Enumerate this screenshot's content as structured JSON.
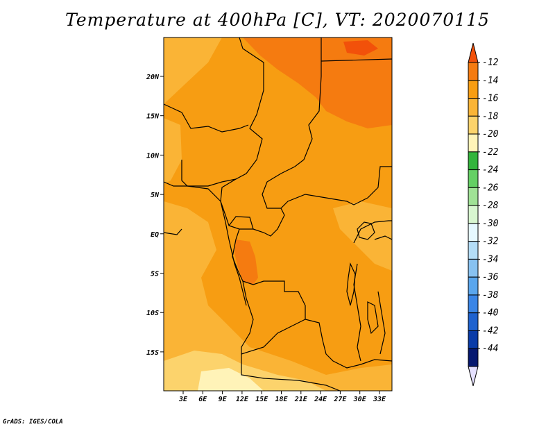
{
  "title": "Temperature at 400hPa [C], VT: 2020070115",
  "credit": "GrADS: IGES/COLA",
  "lat_labels": [
    "20N",
    "15N",
    "10N",
    "5N",
    "EQ",
    "5S",
    "10S",
    "15S"
  ],
  "lon_labels": [
    "3E",
    "6E",
    "9E",
    "12E",
    "15E",
    "18E",
    "21E",
    "24E",
    "27E",
    "30E",
    "33E"
  ],
  "colorbar": {
    "labels": [
      "-12",
      "-14",
      "-16",
      "-18",
      "-20",
      "-22",
      "-24",
      "-26",
      "-28",
      "-30",
      "-32",
      "-34",
      "-36",
      "-38",
      "-40",
      "-42",
      "-44"
    ],
    "colors": [
      "#f2510a",
      "#f57b10",
      "#f79d12",
      "#fab436",
      "#fcd36c",
      "#fff3b8",
      "#33b43c",
      "#64d064",
      "#a0e296",
      "#d8f6d0",
      "#e6f8ff",
      "#b4ddf7",
      "#88c2f1",
      "#5aa6ed",
      "#3a85e6",
      "#1e62cf",
      "#0a3ca8",
      "#061870",
      "#e5e0ff"
    ]
  }
}
